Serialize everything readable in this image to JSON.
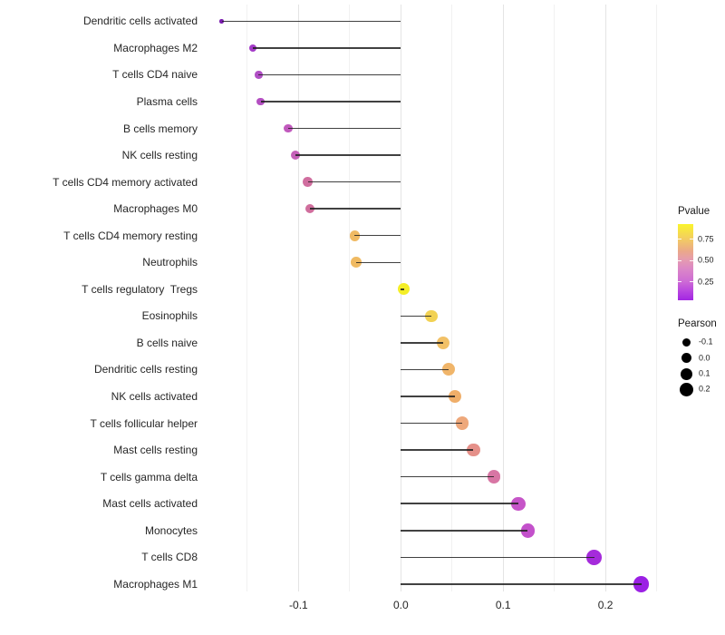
{
  "chart_data": {
    "type": "scatter",
    "subtype": "lollipop",
    "title": "",
    "xlabel": "",
    "ylabel": "",
    "orientation": "horizontal",
    "grid": "vertical-only",
    "categories": [
      "Dendritic cells activated",
      "Macrophages M2",
      "T cells CD4 naive",
      "Plasma cells",
      "B cells memory",
      "NK cells resting",
      "T cells CD4 memory activated",
      "Macrophages M0",
      "T cells CD4 memory resting",
      "Neutrophils",
      "T cells regulatory  Tregs",
      "Eosinophils",
      "B cells naive",
      "Dendritic cells resting",
      "NK cells activated",
      "T cells follicular helper",
      "Mast cells resting",
      "T cells gamma delta",
      "Mast cells activated",
      "Monocytes",
      "T cells CD8",
      "Macrophages M1"
    ],
    "series": [
      {
        "name": "Pearson",
        "values": [
          -0.175,
          -0.145,
          -0.139,
          -0.137,
          -0.11,
          -0.103,
          -0.091,
          -0.089,
          -0.045,
          -0.044,
          0.003,
          0.03,
          0.041,
          0.047,
          0.053,
          0.06,
          0.071,
          0.091,
          0.115,
          0.124,
          0.189,
          0.235
        ]
      },
      {
        "name": "Pvalue (approx, read from color scale)",
        "values": [
          0.05,
          0.15,
          0.2,
          0.2,
          0.27,
          0.3,
          0.42,
          0.42,
          0.65,
          0.65,
          0.9,
          0.8,
          0.7,
          0.65,
          0.6,
          0.55,
          0.48,
          0.38,
          0.3,
          0.28,
          0.13,
          0.1
        ]
      }
    ],
    "point_colors": [
      "#7a1cae",
      "#a43bc8",
      "#b14fc5",
      "#b44fc2",
      "#c159bd",
      "#c560b8",
      "#d06e9f",
      "#d06e9d",
      "#f0ba63",
      "#f0ba62",
      "#f4ee27",
      "#f2d254",
      "#f2c167",
      "#f0b56a",
      "#efae69",
      "#eea87b",
      "#e59089",
      "#d876a4",
      "#c655c8",
      "#c351cb",
      "#a52bdb",
      "#9b20e4"
    ],
    "xlim": [
      -0.19,
      0.265
    ],
    "x_major_ticks": [
      -0.1,
      0.0,
      0.1,
      0.2
    ],
    "x_tick_labels": [
      "-0.1",
      "0.0",
      "0.1",
      "0.2"
    ],
    "x_minor_ticks": [
      -0.15,
      -0.05,
      0.05,
      0.15,
      0.25
    ],
    "baseline": 0,
    "legend_position": "right"
  },
  "legend": {
    "pvalue": {
      "title": "Pvalue",
      "tick_labels": [
        "0.75",
        "0.50",
        "0.25"
      ],
      "gradient_top_color": "#faf42c",
      "gradient_bottom_color": "#a226e2"
    },
    "pearson": {
      "title": "Pearson",
      "entries": [
        "-0.1",
        "0.0",
        "0.1",
        "0.2"
      ],
      "dot_color": "#000000"
    }
  }
}
